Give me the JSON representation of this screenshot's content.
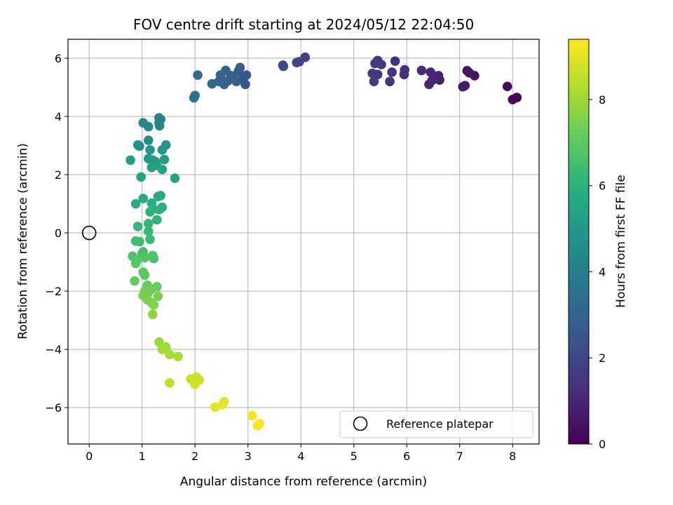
{
  "chart_data": {
    "type": "scatter",
    "title": "FOV centre drift starting at 2024/05/12 22:04:50",
    "xlabel": "Angular distance from reference (arcmin)",
    "ylabel": "Rotation from reference (arcmin)",
    "xlim": [
      -0.4,
      8.5
    ],
    "ylim": [
      -7.25,
      6.65
    ],
    "xticks": [
      0,
      1,
      2,
      3,
      4,
      5,
      6,
      7,
      8
    ],
    "yticks": [
      -6,
      -4,
      -2,
      0,
      2,
      4,
      6
    ],
    "grid": true,
    "colormap": "viridis",
    "colorbar": {
      "label": "Hours from first FF file",
      "range": [
        0,
        9.4
      ],
      "ticks": [
        0,
        2,
        4,
        6,
        8
      ]
    },
    "legend": {
      "placement": "lower-right",
      "entries": [
        "Reference platepar"
      ]
    },
    "reference_point": {
      "x": 0,
      "y": 0
    },
    "points": [
      {
        "x": 8.08,
        "y": 4.65,
        "c": 0.05
      },
      {
        "x": 8.0,
        "y": 4.58,
        "c": 0.15
      },
      {
        "x": 7.9,
        "y": 5.03,
        "c": 0.3
      },
      {
        "x": 7.28,
        "y": 5.4,
        "c": 0.45
      },
      {
        "x": 7.18,
        "y": 5.5,
        "c": 0.55
      },
      {
        "x": 7.14,
        "y": 5.57,
        "c": 0.6
      },
      {
        "x": 7.1,
        "y": 5.06,
        "c": 0.65
      },
      {
        "x": 7.06,
        "y": 5.02,
        "c": 0.7
      },
      {
        "x": 6.62,
        "y": 5.25,
        "c": 0.85
      },
      {
        "x": 6.6,
        "y": 5.4,
        "c": 0.9
      },
      {
        "x": 6.48,
        "y": 5.24,
        "c": 0.95
      },
      {
        "x": 6.45,
        "y": 5.52,
        "c": 1.0
      },
      {
        "x": 6.42,
        "y": 5.1,
        "c": 1.05
      },
      {
        "x": 6.28,
        "y": 5.58,
        "c": 1.1
      },
      {
        "x": 5.96,
        "y": 5.6,
        "c": 1.2
      },
      {
        "x": 5.95,
        "y": 5.44,
        "c": 1.25
      },
      {
        "x": 5.78,
        "y": 5.9,
        "c": 1.3
      },
      {
        "x": 5.72,
        "y": 5.52,
        "c": 1.35
      },
      {
        "x": 5.68,
        "y": 5.2,
        "c": 1.4
      },
      {
        "x": 5.52,
        "y": 5.78,
        "c": 1.45
      },
      {
        "x": 5.45,
        "y": 5.92,
        "c": 1.5
      },
      {
        "x": 5.45,
        "y": 5.44,
        "c": 1.52
      },
      {
        "x": 5.4,
        "y": 5.82,
        "c": 1.55
      },
      {
        "x": 5.38,
        "y": 5.2,
        "c": 1.58
      },
      {
        "x": 5.35,
        "y": 5.48,
        "c": 1.6
      },
      {
        "x": 4.08,
        "y": 6.03,
        "c": 1.85
      },
      {
        "x": 3.97,
        "y": 5.88,
        "c": 1.95
      },
      {
        "x": 3.92,
        "y": 5.85,
        "c": 2.0
      },
      {
        "x": 3.67,
        "y": 5.72,
        "c": 2.1
      },
      {
        "x": 3.66,
        "y": 5.76,
        "c": 2.15
      },
      {
        "x": 2.97,
        "y": 5.42,
        "c": 2.45
      },
      {
        "x": 2.95,
        "y": 5.1,
        "c": 2.5
      },
      {
        "x": 2.9,
        "y": 5.3,
        "c": 2.55
      },
      {
        "x": 2.85,
        "y": 5.68,
        "c": 2.6
      },
      {
        "x": 2.82,
        "y": 5.55,
        "c": 2.65
      },
      {
        "x": 2.78,
        "y": 5.2,
        "c": 2.7
      },
      {
        "x": 2.72,
        "y": 5.35,
        "c": 2.75
      },
      {
        "x": 2.68,
        "y": 5.4,
        "c": 2.8
      },
      {
        "x": 2.62,
        "y": 5.22,
        "c": 2.85
      },
      {
        "x": 2.58,
        "y": 5.58,
        "c": 2.9
      },
      {
        "x": 2.55,
        "y": 5.1,
        "c": 2.95
      },
      {
        "x": 2.5,
        "y": 5.3,
        "c": 3.0
      },
      {
        "x": 2.48,
        "y": 5.42,
        "c": 3.05
      },
      {
        "x": 2.45,
        "y": 5.2,
        "c": 3.1
      },
      {
        "x": 2.32,
        "y": 5.12,
        "c": 3.15
      },
      {
        "x": 2.05,
        "y": 5.42,
        "c": 3.3
      },
      {
        "x": 2.0,
        "y": 4.72,
        "c": 3.4
      },
      {
        "x": 1.98,
        "y": 4.64,
        "c": 3.45
      },
      {
        "x": 1.32,
        "y": 3.95,
        "c": 4.1
      },
      {
        "x": 1.35,
        "y": 3.9,
        "c": 4.15
      },
      {
        "x": 1.32,
        "y": 3.78,
        "c": 4.2
      },
      {
        "x": 1.33,
        "y": 3.68,
        "c": 4.25
      },
      {
        "x": 1.02,
        "y": 3.78,
        "c": 4.35
      },
      {
        "x": 1.12,
        "y": 3.65,
        "c": 4.4
      },
      {
        "x": 1.12,
        "y": 3.18,
        "c": 4.6
      },
      {
        "x": 0.92,
        "y": 3.02,
        "c": 4.7
      },
      {
        "x": 0.95,
        "y": 2.98,
        "c": 4.75
      },
      {
        "x": 1.45,
        "y": 3.02,
        "c": 4.8
      },
      {
        "x": 1.15,
        "y": 2.85,
        "c": 4.85
      },
      {
        "x": 1.38,
        "y": 2.85,
        "c": 4.9
      },
      {
        "x": 1.12,
        "y": 2.55,
        "c": 5.0
      },
      {
        "x": 1.2,
        "y": 2.5,
        "c": 5.05
      },
      {
        "x": 1.25,
        "y": 2.45,
        "c": 5.1
      },
      {
        "x": 1.42,
        "y": 2.52,
        "c": 5.15
      },
      {
        "x": 0.78,
        "y": 2.5,
        "c": 5.2
      },
      {
        "x": 1.28,
        "y": 2.32,
        "c": 5.25
      },
      {
        "x": 1.18,
        "y": 2.25,
        "c": 5.3
      },
      {
        "x": 1.38,
        "y": 2.18,
        "c": 5.35
      },
      {
        "x": 0.98,
        "y": 1.92,
        "c": 5.4
      },
      {
        "x": 1.62,
        "y": 1.88,
        "c": 5.45
      },
      {
        "x": 1.35,
        "y": 1.28,
        "c": 5.65
      },
      {
        "x": 1.3,
        "y": 1.25,
        "c": 5.7
      },
      {
        "x": 1.02,
        "y": 1.18,
        "c": 5.75
      },
      {
        "x": 1.18,
        "y": 1.02,
        "c": 5.8
      },
      {
        "x": 0.88,
        "y": 1.0,
        "c": 5.85
      },
      {
        "x": 1.38,
        "y": 0.88,
        "c": 5.9
      },
      {
        "x": 1.2,
        "y": 0.82,
        "c": 5.95
      },
      {
        "x": 1.32,
        "y": 0.8,
        "c": 6.0
      },
      {
        "x": 1.15,
        "y": 0.72,
        "c": 6.05
      },
      {
        "x": 1.28,
        "y": 0.45,
        "c": 6.1
      },
      {
        "x": 1.12,
        "y": 0.32,
        "c": 6.15
      },
      {
        "x": 0.92,
        "y": 0.22,
        "c": 6.2
      },
      {
        "x": 1.12,
        "y": 0.05,
        "c": 6.25
      },
      {
        "x": 1.15,
        "y": -0.22,
        "c": 6.35
      },
      {
        "x": 0.88,
        "y": -0.28,
        "c": 6.4
      },
      {
        "x": 0.95,
        "y": -0.3,
        "c": 6.45
      },
      {
        "x": 1.02,
        "y": -0.65,
        "c": 6.55
      },
      {
        "x": 1.0,
        "y": -0.72,
        "c": 6.6
      },
      {
        "x": 0.82,
        "y": -0.8,
        "c": 6.65
      },
      {
        "x": 1.2,
        "y": -0.78,
        "c": 6.7
      },
      {
        "x": 1.22,
        "y": -0.88,
        "c": 6.75
      },
      {
        "x": 1.05,
        "y": -0.85,
        "c": 6.8
      },
      {
        "x": 0.9,
        "y": -0.95,
        "c": 6.85
      },
      {
        "x": 0.88,
        "y": -1.05,
        "c": 6.9
      },
      {
        "x": 1.02,
        "y": -1.35,
        "c": 7.0
      },
      {
        "x": 1.05,
        "y": -1.45,
        "c": 7.05
      },
      {
        "x": 0.86,
        "y": -1.65,
        "c": 7.1
      },
      {
        "x": 1.1,
        "y": -1.8,
        "c": 7.15
      },
      {
        "x": 1.28,
        "y": -1.85,
        "c": 7.2
      },
      {
        "x": 1.18,
        "y": -1.92,
        "c": 7.25
      },
      {
        "x": 1.05,
        "y": -2.0,
        "c": 7.3
      },
      {
        "x": 1.12,
        "y": -2.05,
        "c": 7.35
      },
      {
        "x": 1.02,
        "y": -2.15,
        "c": 7.4
      },
      {
        "x": 1.3,
        "y": -2.18,
        "c": 7.45
      },
      {
        "x": 1.1,
        "y": -2.3,
        "c": 7.5
      },
      {
        "x": 1.18,
        "y": -2.4,
        "c": 7.55
      },
      {
        "x": 1.22,
        "y": -2.48,
        "c": 7.6
      },
      {
        "x": 1.2,
        "y": -2.8,
        "c": 7.7
      },
      {
        "x": 1.32,
        "y": -3.75,
        "c": 8.0
      },
      {
        "x": 1.45,
        "y": -3.92,
        "c": 8.05
      },
      {
        "x": 1.38,
        "y": -4.0,
        "c": 8.1
      },
      {
        "x": 1.52,
        "y": -4.18,
        "c": 8.15
      },
      {
        "x": 1.68,
        "y": -4.25,
        "c": 8.2
      },
      {
        "x": 1.52,
        "y": -5.15,
        "c": 8.5
      },
      {
        "x": 1.92,
        "y": -5.02,
        "c": 8.6
      },
      {
        "x": 2.02,
        "y": -4.95,
        "c": 8.65
      },
      {
        "x": 2.08,
        "y": -5.05,
        "c": 8.7
      },
      {
        "x": 2.0,
        "y": -5.2,
        "c": 8.75
      },
      {
        "x": 2.38,
        "y": -5.98,
        "c": 9.0
      },
      {
        "x": 2.55,
        "y": -5.8,
        "c": 9.05
      },
      {
        "x": 2.52,
        "y": -5.9,
        "c": 9.1
      },
      {
        "x": 3.08,
        "y": -6.28,
        "c": 9.25
      },
      {
        "x": 3.22,
        "y": -6.55,
        "c": 9.3
      },
      {
        "x": 3.18,
        "y": -6.62,
        "c": 9.35
      }
    ]
  }
}
